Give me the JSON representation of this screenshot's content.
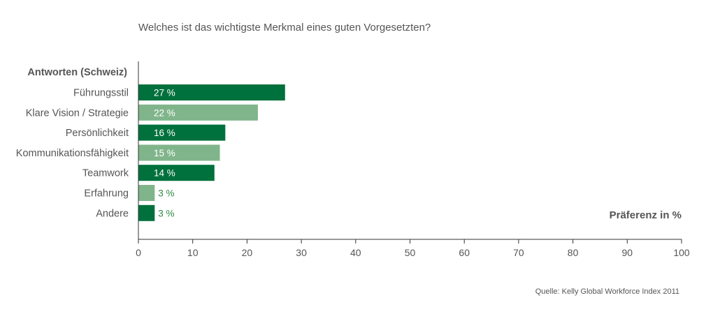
{
  "chart_data": {
    "type": "bar",
    "orientation": "horizontal",
    "title": "Welches ist das wichtigste Merkmal eines guten Vorgesetzten?",
    "category_header": "Antworten (Schweiz)",
    "categories": [
      "Führungsstil",
      "Klare Vision / Strategie",
      "Persönlichkeit",
      "Kommunikationsfähigkeit",
      "Teamwork",
      "Erfahrung",
      "Andere"
    ],
    "values": [
      27,
      22,
      16,
      15,
      14,
      3,
      3
    ],
    "value_labels": [
      "27 %",
      "22 %",
      "16 %",
      "15 %",
      "14 %",
      "3 %",
      "3 %"
    ],
    "xlabel": "Präferenz in %",
    "xlim": [
      0,
      100
    ],
    "xticks": [
      0,
      10,
      20,
      30,
      40,
      50,
      60,
      70,
      80,
      90,
      100
    ],
    "grid": false,
    "colors": {
      "dark": "#00703c",
      "light": "#80b58b",
      "outside_label": "#2e8b3f",
      "axis": "#333333"
    },
    "bar_colors": [
      "dark",
      "light",
      "dark",
      "light",
      "dark",
      "light",
      "dark"
    ],
    "source": "Quelle: Kelly Global Workforce Index 2011"
  }
}
